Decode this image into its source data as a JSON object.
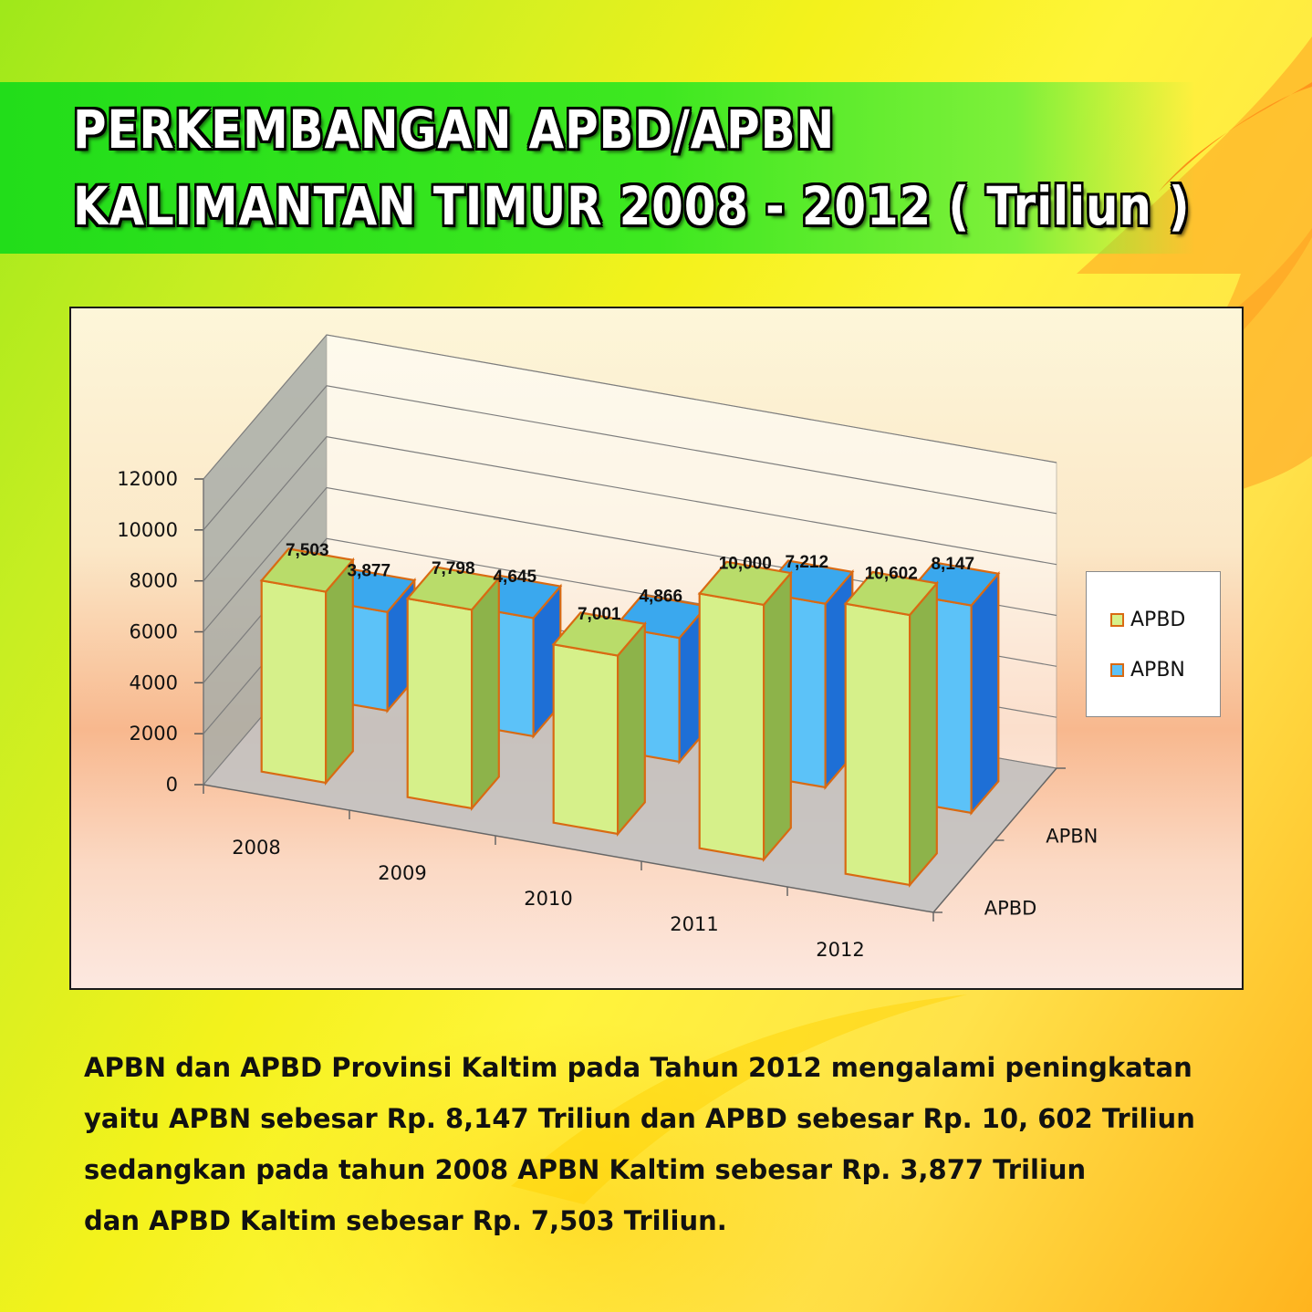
{
  "title": {
    "line1": "PERKEMBANGAN APBD/APBN",
    "line2": "KALIMANTAN TIMUR 2008 - 2012 ( Triliun )"
  },
  "colors": {
    "apbd_fill": "#d6f08a",
    "apbd_edge": "#d96a12",
    "apbn_fill": "#5cc2f8",
    "apbn_side": "#1e6fd6",
    "title_band": "#2ee31c"
  },
  "chart_data": {
    "type": "bar",
    "style": "3d-clustered-columns",
    "categories": [
      "2008",
      "2009",
      "2010",
      "2011",
      "2012"
    ],
    "series": [
      {
        "name": "APBD",
        "values": [
          7503,
          7798,
          7001,
          10000,
          10602
        ],
        "labels": [
          "7,503",
          "7,798",
          "7,001",
          "10,000",
          "10,602"
        ]
      },
      {
        "name": "APBN",
        "values": [
          3877,
          4645,
          4866,
          7212,
          8147
        ],
        "labels": [
          "3,877",
          "4,645",
          "4,866",
          "7,212",
          "8,147"
        ]
      }
    ],
    "y_ticks": [
      "0",
      "2000",
      "4000",
      "6000",
      "8000",
      "10000",
      "12000"
    ],
    "ylim": [
      0,
      12000
    ],
    "depth_labels": [
      "APBN",
      "APBD"
    ],
    "grid": true,
    "legend": {
      "position": "right",
      "entries": [
        "APBD",
        "APBN"
      ]
    }
  },
  "summary": {
    "line1": "APBN dan APBD Provinsi Kaltim pada Tahun 2012 mengalami peningkatan",
    "line2": "yaitu APBN sebesar Rp. 8,147 Triliun dan APBD sebesar Rp. 10, 602 Triliun",
    "line3": "sedangkan pada tahun 2008 APBN Kaltim sebesar Rp. 3,877 Triliun",
    "line4": "dan APBD Kaltim sebesar Rp. 7,503 Triliun."
  }
}
